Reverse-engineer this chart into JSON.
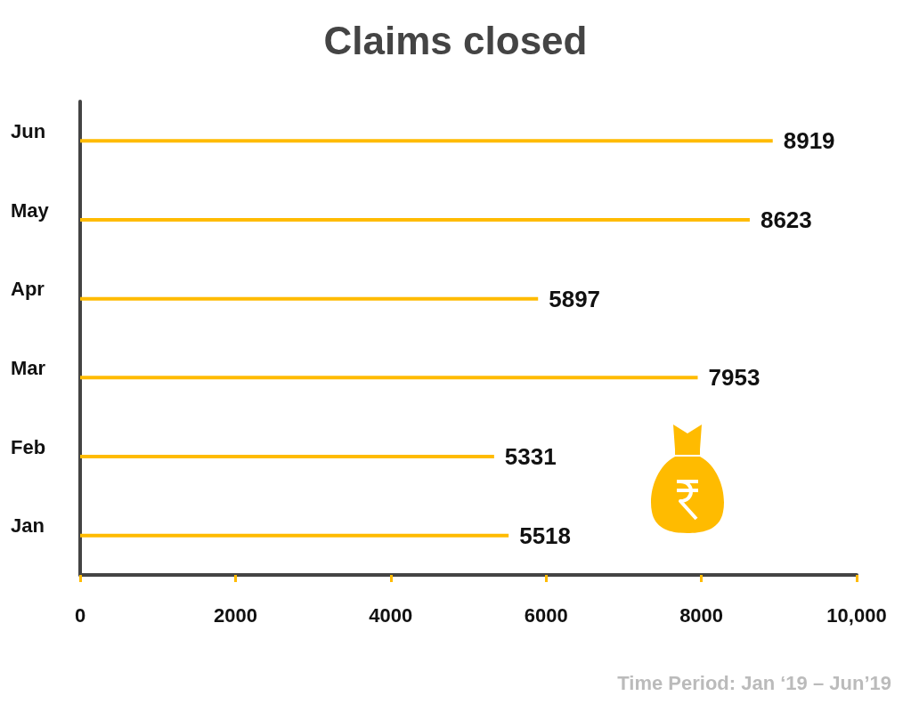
{
  "chart_data": {
    "type": "bar",
    "orientation": "horizontal",
    "title": "Claims closed",
    "categories": [
      "Jun",
      "May",
      "Apr",
      "Mar",
      "Feb",
      "Jan"
    ],
    "values": [
      8919,
      8623,
      5897,
      7953,
      5331,
      5518
    ],
    "color": "#ffbb00",
    "xlim": [
      0,
      10000
    ],
    "xticks": [
      0,
      2000,
      4000,
      6000,
      8000,
      {
        "value": 10000,
        "label": "10,000"
      }
    ],
    "data_labels": true,
    "annotations": [
      "Time Period: Jan ‘19 – Jun’19"
    ]
  }
}
